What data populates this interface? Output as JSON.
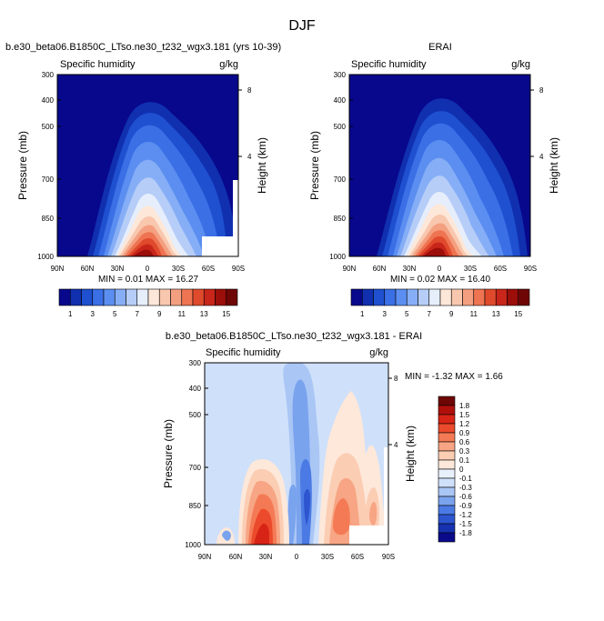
{
  "figure": {
    "title": "DJF"
  },
  "panels": [
    {
      "id": "model",
      "title": "b.e30_beta06.B1850C_LTso.ne30_t232_wgx3.181 (yrs 10-39)",
      "left_label": "Specific humidity",
      "right_label": "g/kg",
      "stats": "MIN =  0.01  MAX =  16.27"
    },
    {
      "id": "obs",
      "title": "ERAI",
      "left_label": "Specific humidity",
      "right_label": "g/kg",
      "stats": "MIN =  0.02  MAX =  16.40"
    },
    {
      "id": "diff",
      "title": "b.e30_beta06.B1850C_LTso.ne30_t232_wgx3.181 - ERAI",
      "left_label": "Specific humidity",
      "right_label": "g/kg",
      "stats": "MIN = -1.32  MAX =   1.66"
    }
  ],
  "chart_data": [
    {
      "type": "heatmap",
      "title": "b.e30_beta06.B1850C_LTso.ne30_t232_wgx3.181 (yrs 10-39)",
      "ylabel": "Pressure (mb)",
      "y2label": "Height (km)",
      "x_ticks": [
        "90N",
        "60N",
        "30N",
        "0",
        "30S",
        "60S",
        "90S"
      ],
      "y_ticks": [
        "300",
        "400",
        "500",
        "700",
        "850",
        "1000"
      ],
      "y2_ticks": [
        "8",
        "4"
      ],
      "ylim": [
        1000,
        300
      ],
      "variable": "Specific humidity",
      "units": "g/kg",
      "min": 0.01,
      "max": 16.27,
      "colorbar_levels": [
        1,
        2,
        3,
        4,
        5,
        6,
        7,
        8,
        9,
        10,
        11,
        12,
        13,
        14,
        15
      ],
      "colorbar_labels": [
        "1",
        "3",
        "5",
        "7",
        "9",
        "11",
        "13",
        "15"
      ]
    },
    {
      "type": "heatmap",
      "title": "ERAI",
      "ylabel": "Pressure (mb)",
      "y2label": "Height (km)",
      "x_ticks": [
        "90N",
        "60N",
        "30N",
        "0",
        "30S",
        "60S",
        "90S"
      ],
      "y_ticks": [
        "300",
        "400",
        "500",
        "700",
        "850",
        "1000"
      ],
      "y2_ticks": [
        "8",
        "4"
      ],
      "ylim": [
        1000,
        300
      ],
      "variable": "Specific humidity",
      "units": "g/kg",
      "min": 0.02,
      "max": 16.4,
      "colorbar_levels": [
        1,
        2,
        3,
        4,
        5,
        6,
        7,
        8,
        9,
        10,
        11,
        12,
        13,
        14,
        15
      ],
      "colorbar_labels": [
        "1",
        "3",
        "5",
        "7",
        "9",
        "11",
        "13",
        "15"
      ]
    },
    {
      "type": "heatmap",
      "title": "b.e30_beta06.B1850C_LTso.ne30_t232_wgx3.181 - ERAI",
      "ylabel": "Pressure (mb)",
      "y2label": "Height (km)",
      "x_ticks": [
        "90N",
        "60N",
        "30N",
        "0",
        "30S",
        "60S",
        "90S"
      ],
      "y_ticks": [
        "300",
        "400",
        "500",
        "700",
        "850",
        "1000"
      ],
      "y2_ticks": [
        "8",
        "4"
      ],
      "ylim": [
        1000,
        300
      ],
      "variable": "Specific humidity",
      "units": "g/kg",
      "min": -1.32,
      "max": 1.66,
      "colorbar_levels": [
        1.8,
        1.5,
        1.2,
        0.9,
        0.6,
        0.3,
        0.1,
        0,
        -0.1,
        -0.3,
        -0.6,
        -0.9,
        -1.2,
        -1.5,
        -1.8
      ],
      "colorbar_labels": [
        "1.8",
        "1.5",
        "1.2",
        "0.9",
        "0.6",
        "0.3",
        "0.1",
        "0",
        "-0.1",
        "-0.3",
        "-0.6",
        "-0.9",
        "-1.2",
        "-1.5",
        "-1.8"
      ]
    }
  ],
  "colors": {
    "seq": [
      "#08088c",
      "#1030b0",
      "#1e50d0",
      "#3a6fe6",
      "#5b8ef0",
      "#86aef6",
      "#b6cdf8",
      "#e6eefc",
      "#fde7d8",
      "#f8c7ae",
      "#f4a080",
      "#ee7452",
      "#e04a2c",
      "#c8261a",
      "#9c0e0a",
      "#6e0606"
    ],
    "div": [
      "#6e0606",
      "#b0100c",
      "#d82416",
      "#ec4a2c",
      "#f47a55",
      "#f7a584",
      "#fbcdb3",
      "#fde8da",
      "#e8f0fc",
      "#cfe0fa",
      "#a9c6f5",
      "#7aa3ee",
      "#4b7ae4",
      "#2d55cf",
      "#1632b0",
      "#0a0a8a"
    ]
  }
}
